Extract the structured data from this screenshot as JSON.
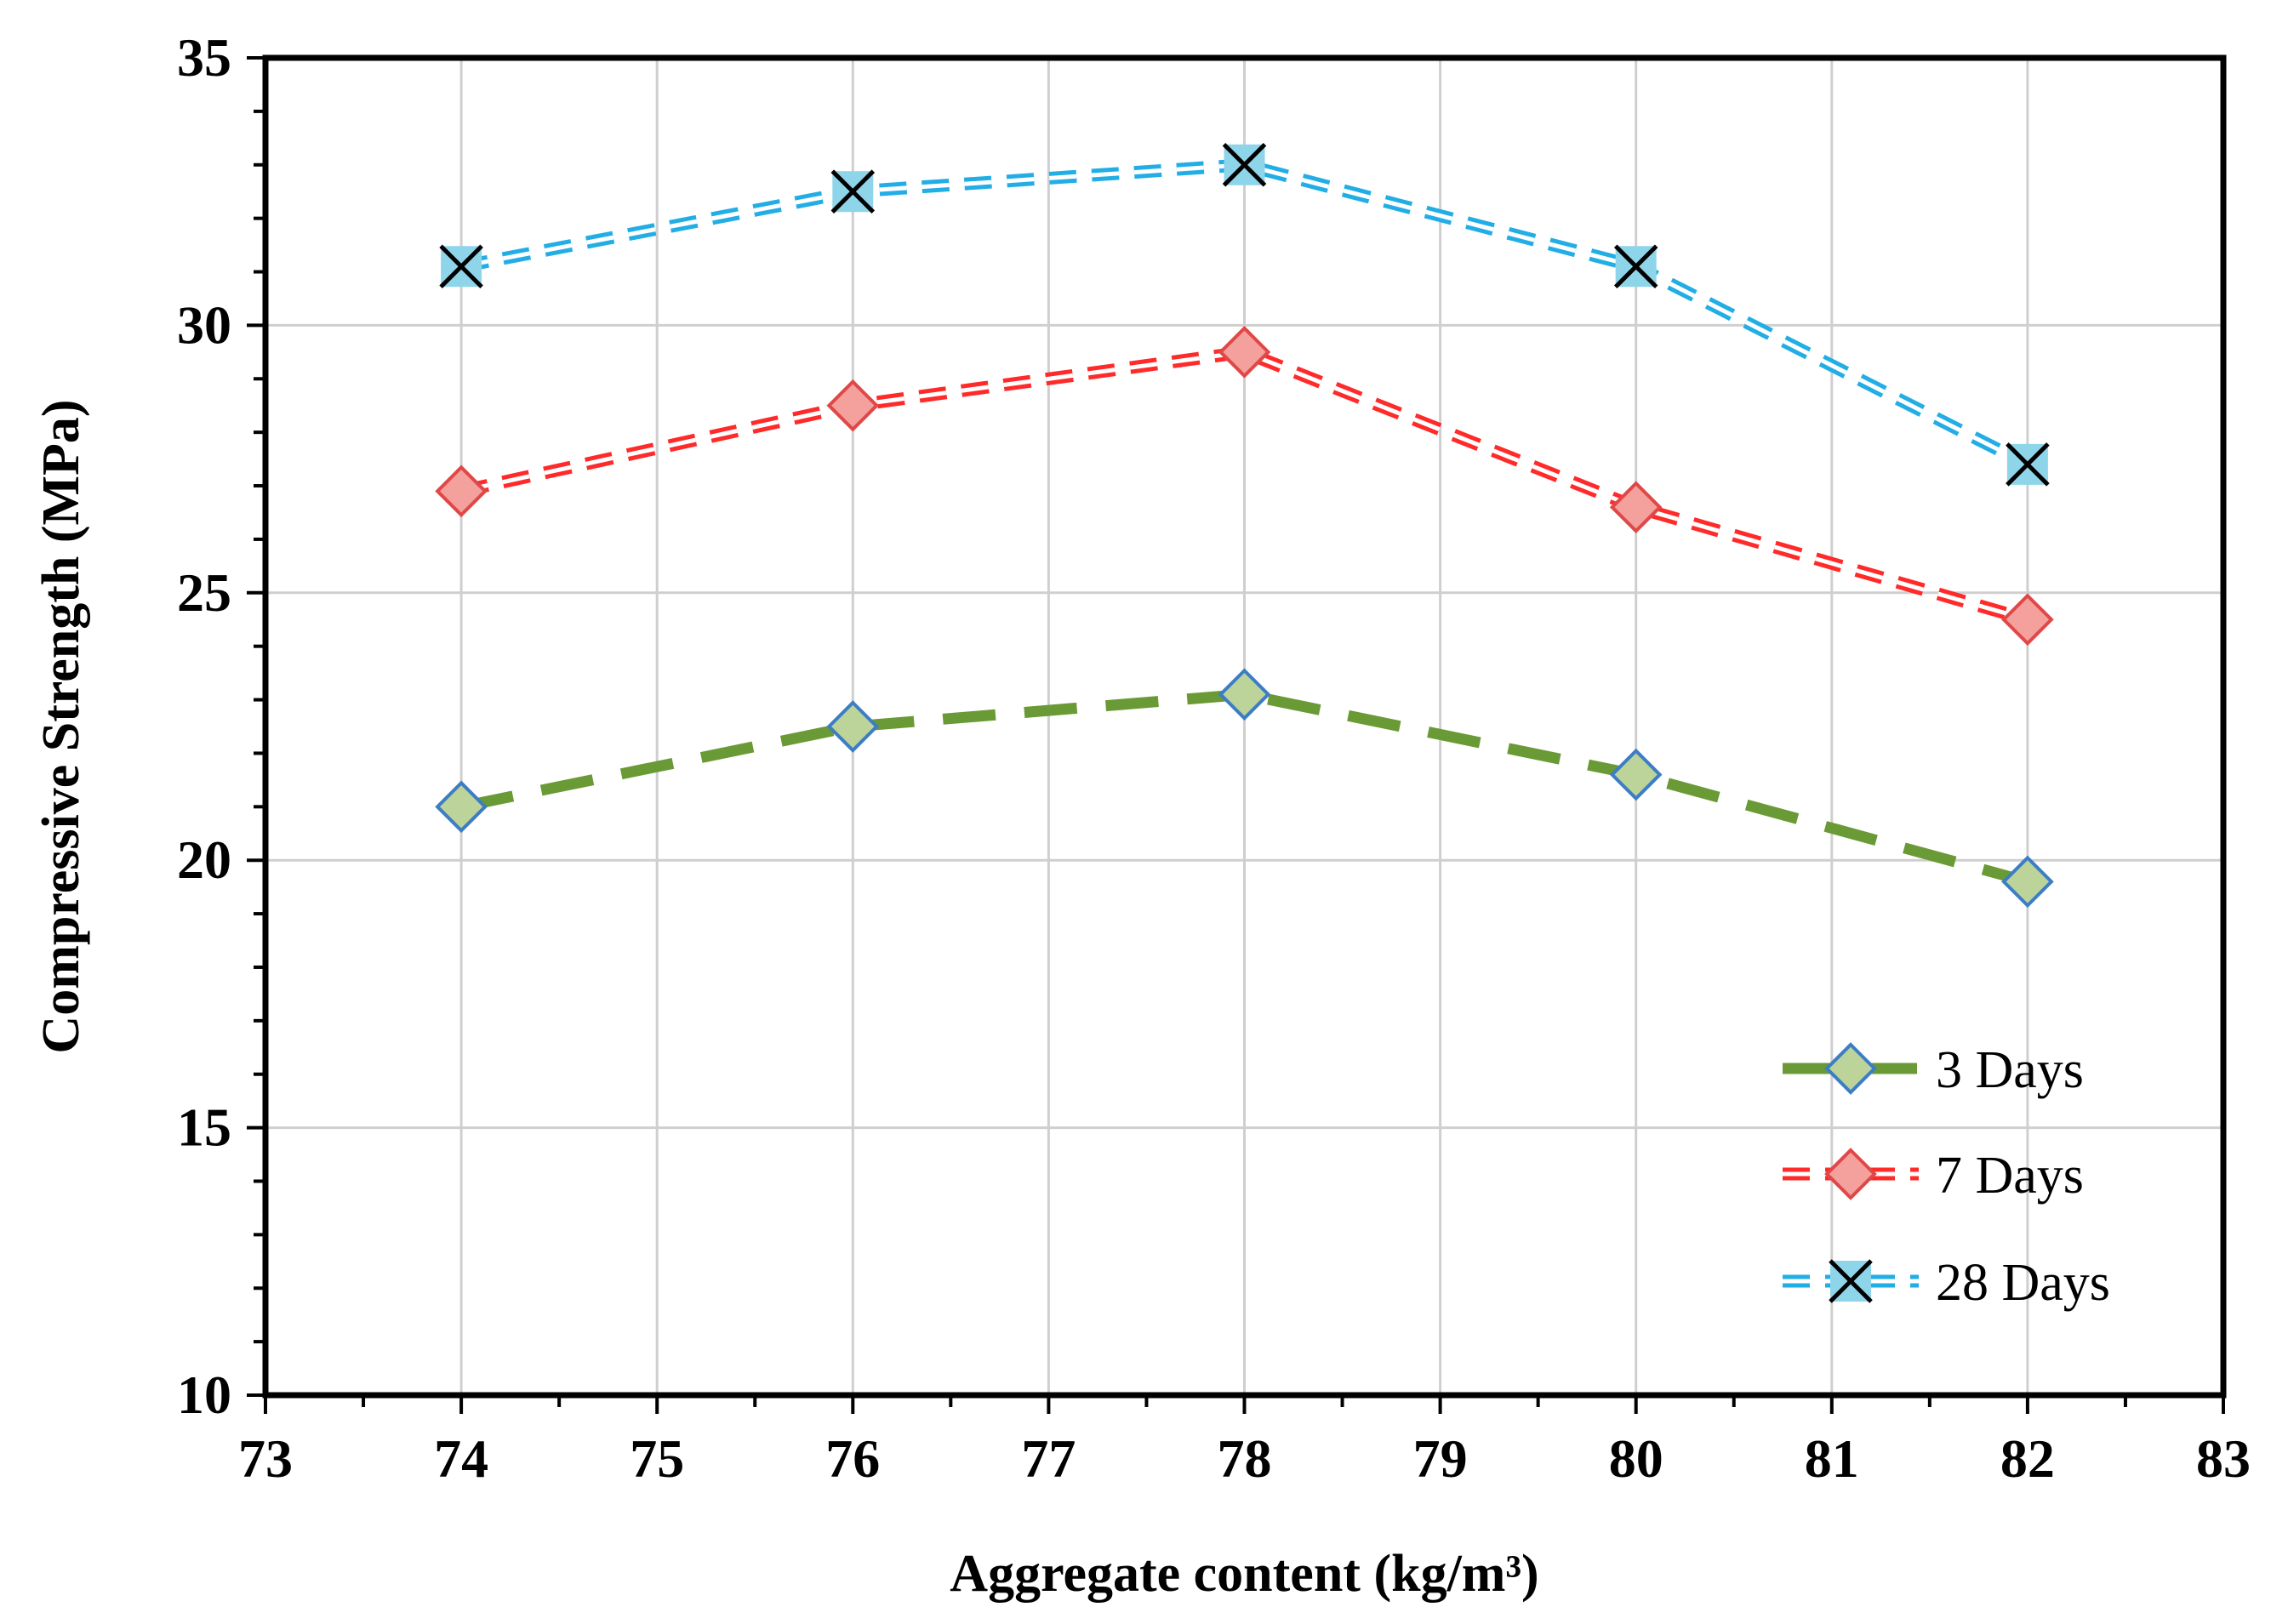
{
  "chart_data": {
    "type": "line",
    "title": "",
    "xlabel": "Aggregate content  (kg/m³)",
    "ylabel": "Compressive Strength  (MPa)",
    "xlim": [
      73,
      83
    ],
    "ylim": [
      10,
      35
    ],
    "x_ticks": [
      "73",
      "74",
      "75",
      "76",
      "77",
      "78",
      "79",
      "80",
      "81",
      "82",
      "83"
    ],
    "y_ticks": [
      "10",
      "15",
      "20",
      "25",
      "30",
      "35"
    ],
    "grid": true,
    "legend_position": "bottom-right",
    "x": [
      74,
      76,
      78,
      80,
      82
    ],
    "series": [
      {
        "name": "3 Days",
        "values": [
          21.0,
          22.5,
          23.1,
          21.6,
          19.6
        ],
        "color": "#6a9a35",
        "marker": "diamond",
        "marker_fill": "#bcd39a",
        "marker_stroke": "#3c7dc4",
        "line_style": "long-dash"
      },
      {
        "name": "7 Days",
        "values": [
          26.9,
          28.5,
          29.5,
          26.6,
          24.5
        ],
        "color": "#ff2a2a",
        "marker": "diamond",
        "marker_fill": "#f4a09c",
        "marker_stroke": "#e04848",
        "line_style": "double-dash"
      },
      {
        "name": "28 Days",
        "values": [
          31.1,
          32.5,
          33.0,
          31.1,
          27.4
        ],
        "color": "#22aee5",
        "marker": "x-square",
        "marker_fill": "#8fd5ea",
        "marker_stroke": "#000000",
        "line_style": "double-dash"
      }
    ]
  }
}
